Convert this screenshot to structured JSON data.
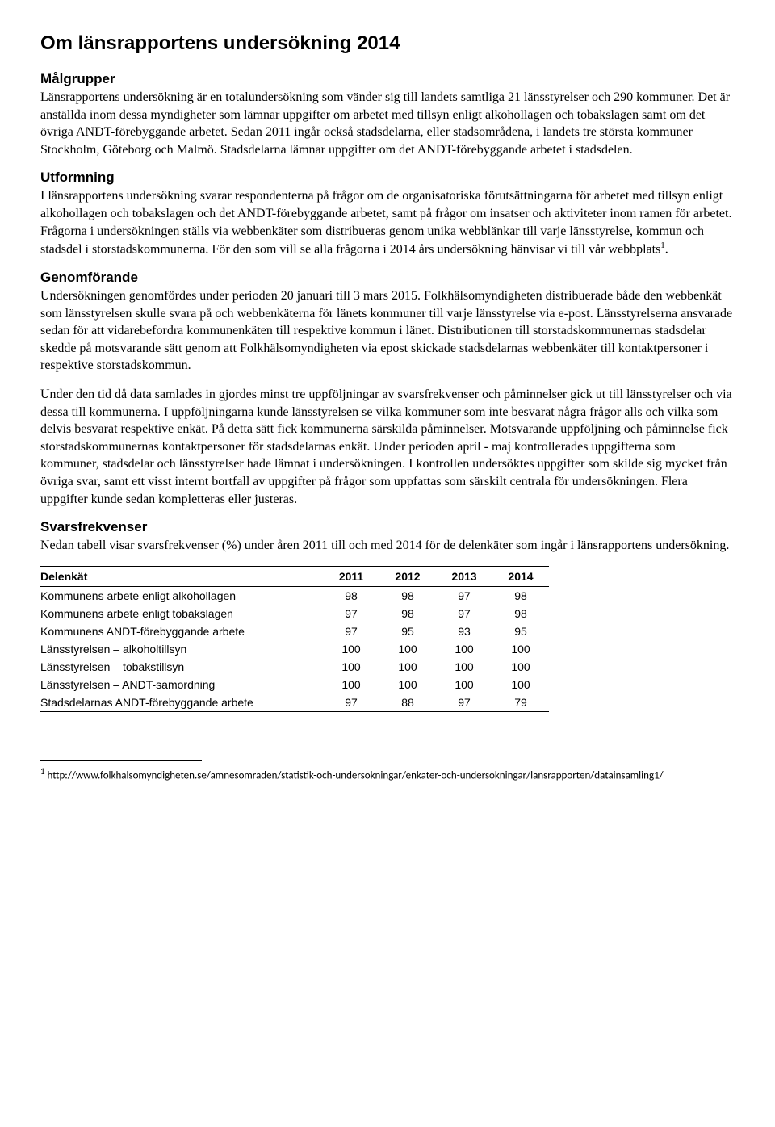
{
  "title": "Om länsrapportens undersökning 2014",
  "sections": {
    "s1": {
      "heading": "Målgrupper",
      "text": "Länsrapportens undersökning är en totalundersökning som vänder sig till landets samtliga 21 länsstyrelser och 290 kommuner. Det är anställda inom dessa myndigheter som lämnar uppgifter om arbetet med tillsyn enligt alkohollagen och tobakslagen samt om det övriga ANDT-förebyggande arbetet. Sedan 2011 ingår också stadsdelarna, eller stadsområdena, i landets tre största kommuner Stockholm, Göteborg och Malmö. Stadsdelarna lämnar uppgifter om det ANDT-förebyggande arbetet i stadsdelen."
    },
    "s2": {
      "heading": "Utformning",
      "text_a": "I länsrapportens undersökning svarar respondenterna på frågor om de organisatoriska förutsättningarna för arbetet med tillsyn enligt alkohollagen och tobakslagen och det ANDT-förebyggande arbetet, samt på frågor om insatser och aktiviteter inom ramen för arbetet. Frågorna i undersökningen ställs via webbenkäter som distribueras genom unika webblänkar till varje länsstyrelse, kommun och stadsdel i storstadskommunerna. För den som vill se alla frågorna i 2014 års undersökning hänvisar vi till vår webbplats",
      "sup": "1",
      "text_b": "."
    },
    "s3": {
      "heading": "Genomförande",
      "text": "Undersökningen genomfördes under perioden 20 januari till 3 mars 2015. Folkhälsomyndigheten distribuerade både den webbenkät som länsstyrelsen skulle svara på och webbenkäterna för länets kommuner till varje länsstyrelse via e-post. Länsstyrelserna ansvarade sedan för att vidarebefordra kommunenkäten till respektive kommun i länet. Distributionen till storstadskommunernas stadsdelar skedde på motsvarande sätt genom att Folkhälsomyndigheten via epost skickade stadsdelarnas webbenkäter till kontaktpersoner i respektive storstadskommun."
    },
    "s3b": {
      "text": "Under den tid då data samlades in gjordes minst tre uppföljningar av svarsfrekvenser och påminnelser gick ut till länsstyrelser och via dessa till kommunerna. I uppföljningarna kunde länsstyrelsen se vilka kommuner som inte besvarat några frågor alls och vilka som delvis besvarat respektive enkät. På detta sätt fick kommunerna särskilda påminnelser. Motsvarande uppföljning och påminnelse fick storstadskommunernas kontaktpersoner för stadsdelarnas enkät. Under perioden april - maj kontrollerades uppgifterna som kommuner, stadsdelar och länsstyrelser hade lämnat i undersökningen. I kontrollen undersöktes uppgifter som skilde sig mycket från övriga svar, samt ett visst internt bortfall av uppgifter på frågor som uppfattas som särskilt centrala för undersökningen. Flera uppgifter kunde sedan kompletteras eller justeras."
    },
    "s4": {
      "heading": "Svarsfrekvenser",
      "text": "Nedan tabell visar svarsfrekvenser (%) under åren 2011 till och med 2014 för de delenkäter som ingår i länsrapportens undersökning."
    }
  },
  "table": {
    "col0": "Delenkät",
    "years": [
      "2011",
      "2012",
      "2013",
      "2014"
    ],
    "rows": [
      {
        "label": "Kommunens arbete enligt alkohollagen",
        "v": [
          "98",
          "98",
          "97",
          "98"
        ]
      },
      {
        "label": "Kommunens arbete enligt tobakslagen",
        "v": [
          "97",
          "98",
          "97",
          "98"
        ]
      },
      {
        "label": "Kommunens ANDT-förebyggande arbete",
        "v": [
          "97",
          "95",
          "93",
          "95"
        ]
      },
      {
        "label": "Länsstyrelsen – alkoholtillsyn",
        "v": [
          "100",
          "100",
          "100",
          "100"
        ]
      },
      {
        "label": "Länsstyrelsen – tobakstillsyn",
        "v": [
          "100",
          "100",
          "100",
          "100"
        ]
      },
      {
        "label": "Länsstyrelsen – ANDT-samordning",
        "v": [
          "100",
          "100",
          "100",
          "100"
        ]
      },
      {
        "label": "Stadsdelarnas ANDT-förebyggande arbete",
        "v": [
          "97",
          "88",
          "97",
          "79"
        ]
      }
    ]
  },
  "footnote": {
    "num": "1",
    "text": " http://www.folkhalsomyndigheten.se/amnesomraden/statistik-och-undersokningar/enkater-och-undersokningar/lansrapporten/datainsamling1/"
  }
}
